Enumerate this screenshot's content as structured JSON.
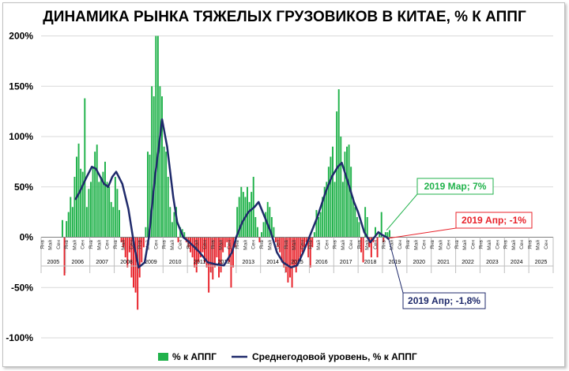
{
  "chart_data": {
    "type": "bar+line",
    "title": "ДИНАМИКА РЫНКА ТЯЖЕЛЫХ ГРУЗОВИКОВ В КИТАЕ, % К АППГ",
    "y_axis": {
      "range": [
        -100,
        200
      ],
      "ticks": [
        200,
        150,
        100,
        50,
        0,
        -50,
        -100
      ],
      "tick_labels": [
        "200%",
        "150%",
        "100%",
        "50%",
        "0%",
        "-50%",
        "-100%"
      ]
    },
    "x_axis": {
      "years": [
        "2005",
        "2006",
        "2007",
        "2008",
        "2009",
        "2010",
        "2011",
        "2012",
        "2013",
        "2014",
        "2015",
        "2016",
        "2017",
        "2018",
        "2019",
        "2020",
        "2021",
        "2022",
        "2023",
        "2024",
        "2025"
      ],
      "month_labels": [
        "Янв",
        "Май",
        "Сен"
      ]
    },
    "colors": {
      "positive_bar": "#21b24b",
      "negative_bar": "#e8222a",
      "line": "#1f2a6b"
    },
    "series": [
      {
        "name": "% к АППГ",
        "type": "bar",
        "start": "2005-11",
        "values": [
          17,
          -38,
          16,
          25,
          40,
          30,
          60,
          80,
          93,
          68,
          65,
          138,
          30,
          48,
          55,
          70,
          85,
          92,
          55,
          60,
          65,
          75,
          55,
          50,
          35,
          30,
          60,
          48,
          27,
          -5,
          -10,
          -20,
          -30,
          -15,
          -40,
          -50,
          -55,
          -72,
          -40,
          -25,
          -10,
          10,
          85,
          82,
          150,
          140,
          200,
          200,
          150,
          140,
          90,
          85,
          60,
          30,
          15,
          25,
          30,
          -5,
          10,
          8,
          5,
          -5,
          -10,
          -15,
          -20,
          -30,
          -35,
          -25,
          -20,
          -15,
          -25,
          -30,
          -55,
          -35,
          -42,
          -30,
          -20,
          -40,
          -35,
          -15,
          -10,
          -5,
          -25,
          -50,
          -30,
          -10,
          30,
          40,
          50,
          45,
          40,
          50,
          35,
          45,
          60,
          20,
          10,
          -5,
          5,
          15,
          25,
          35,
          30,
          20,
          10,
          -5,
          -10,
          -15,
          -25,
          -30,
          -35,
          -45,
          -40,
          -50,
          -30,
          -35,
          -25,
          -20,
          -15,
          -10,
          -5,
          -20,
          -30,
          -10,
          5,
          27,
          20,
          25,
          40,
          50,
          55,
          70,
          80,
          90,
          55,
          125,
          147,
          100,
          55,
          85,
          90,
          92,
          70,
          40,
          30,
          20,
          15,
          -15,
          -25,
          30,
          20,
          -10,
          -20,
          -5,
          10,
          -20,
          5,
          25,
          -5,
          5,
          5,
          7,
          -1
        ]
      },
      {
        "name": "Среднегодовой уровень, % к АППГ",
        "type": "line",
        "points": [
          [
            2006.42,
            38
          ],
          [
            2006.58,
            45
          ],
          [
            2006.83,
            58
          ],
          [
            2007.08,
            70
          ],
          [
            2007.25,
            68
          ],
          [
            2007.58,
            53
          ],
          [
            2007.75,
            50
          ],
          [
            2007.92,
            60
          ],
          [
            2008.08,
            65
          ],
          [
            2008.33,
            53
          ],
          [
            2008.58,
            28
          ],
          [
            2008.83,
            -10
          ],
          [
            2009.0,
            -30
          ],
          [
            2009.25,
            -25
          ],
          [
            2009.42,
            0
          ],
          [
            2009.67,
            60
          ],
          [
            2009.83,
            90
          ],
          [
            2009.96,
            117
          ],
          [
            2010.17,
            90
          ],
          [
            2010.42,
            40
          ],
          [
            2010.58,
            15
          ],
          [
            2010.83,
            0
          ],
          [
            2011.08,
            -5
          ],
          [
            2011.5,
            -15
          ],
          [
            2011.83,
            -25
          ],
          [
            2012.17,
            -27
          ],
          [
            2012.5,
            -28
          ],
          [
            2012.83,
            -15
          ],
          [
            2013.0,
            0
          ],
          [
            2013.25,
            15
          ],
          [
            2013.5,
            25
          ],
          [
            2013.75,
            30
          ],
          [
            2013.92,
            35
          ],
          [
            2014.17,
            20
          ],
          [
            2014.42,
            5
          ],
          [
            2014.67,
            -15
          ],
          [
            2014.92,
            -25
          ],
          [
            2015.25,
            -30
          ],
          [
            2015.5,
            -28
          ],
          [
            2015.75,
            -15
          ],
          [
            2016.0,
            0
          ],
          [
            2016.33,
            20
          ],
          [
            2016.67,
            45
          ],
          [
            2016.92,
            60
          ],
          [
            2017.17,
            70
          ],
          [
            2017.33,
            74
          ],
          [
            2017.58,
            55
          ],
          [
            2017.83,
            35
          ],
          [
            2018.0,
            25
          ],
          [
            2018.25,
            5
          ],
          [
            2018.5,
            -5
          ],
          [
            2018.67,
            0
          ],
          [
            2018.83,
            5
          ],
          [
            2019.0,
            2
          ],
          [
            2019.17,
            0
          ],
          [
            2019.25,
            -1.8
          ]
        ]
      }
    ],
    "legend": {
      "position": "bottom",
      "entries": [
        "% к АППГ",
        "Среднегодовой уровень, % к АППГ"
      ]
    },
    "annotations": [
      {
        "id": "mar",
        "text": "2019 Мар; 7%",
        "color": "#21b24b",
        "target": [
          2019.17,
          7
        ]
      },
      {
        "id": "apr",
        "text": "2019 Апр; -1%",
        "color": "#e8222a",
        "target": [
          2019.25,
          -1
        ]
      },
      {
        "id": "avg",
        "text": "2019 Апр; -1,8%",
        "color": "#1f2a6b",
        "target": [
          2019.25,
          -1.8
        ]
      }
    ]
  }
}
